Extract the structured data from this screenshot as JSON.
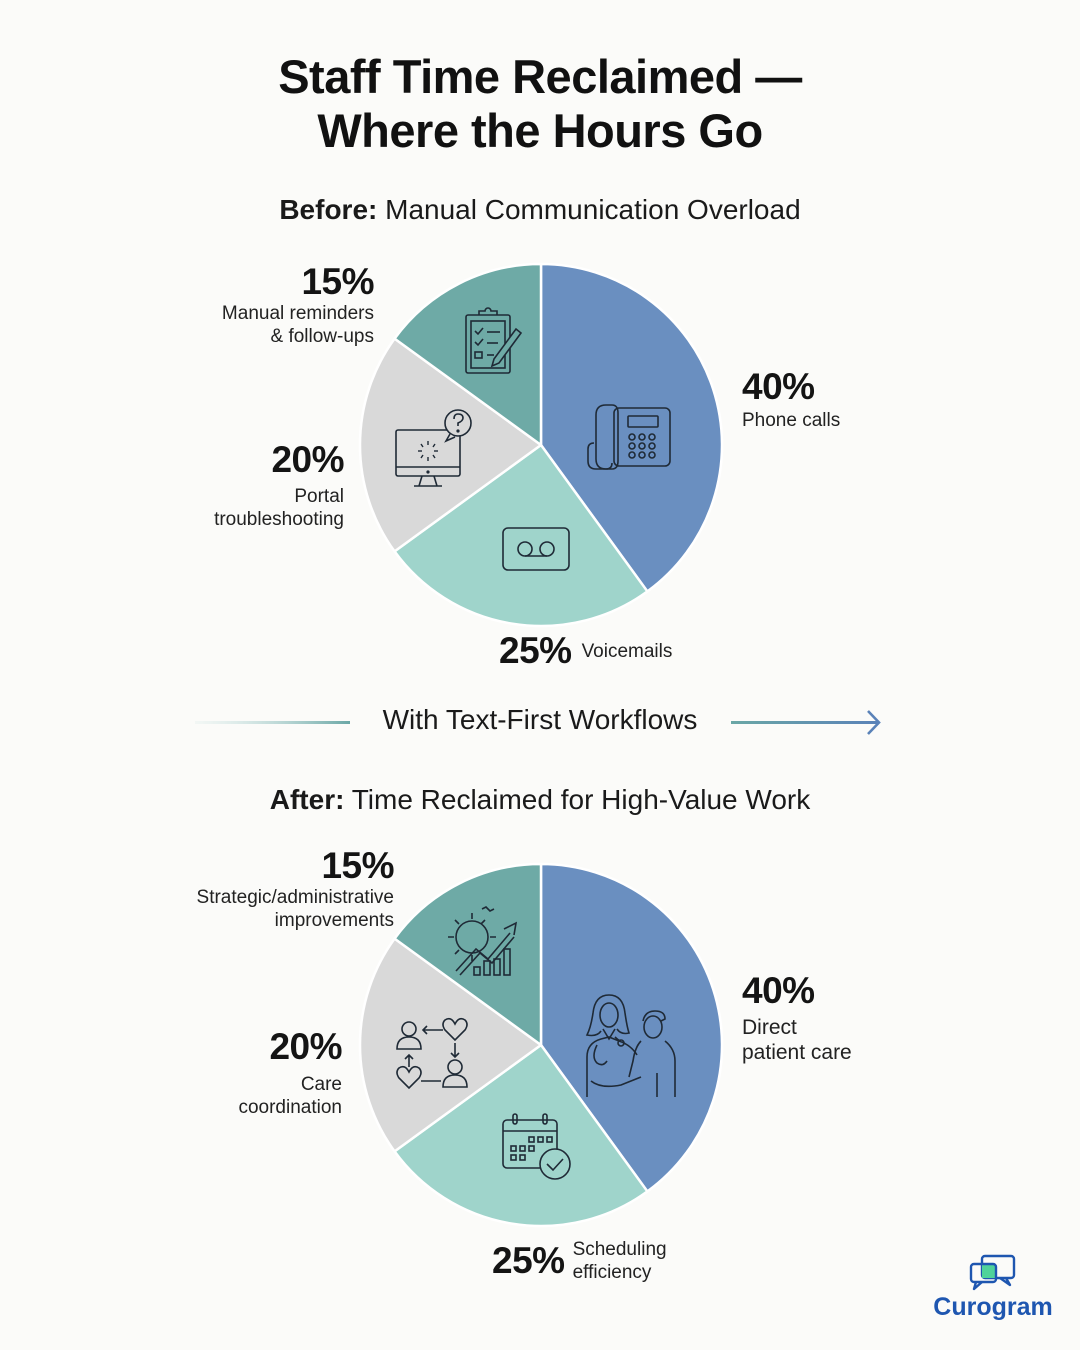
{
  "header": {
    "title_line1": "Staff Time Reclaimed —",
    "title_line2": "Where the Hours Go"
  },
  "before": {
    "heading_bold": "Before:",
    "heading_rest": " Manual Communication Overload"
  },
  "divider": {
    "label": "With Text-First Workflows",
    "icon": "arrow-right-icon"
  },
  "after": {
    "heading_bold": "After:",
    "heading_rest": " Time Reclaimed for High-Value Work"
  },
  "colors": {
    "blue": "#6a8fc0",
    "light_teal": "#9fd4cb",
    "grey": "#d9d9d9",
    "teal": "#6eaaa6",
    "brand": "#1e56b0",
    "brand_accent": "#4fd39a",
    "background": "#fbfbf9"
  },
  "brand": {
    "name": "Curogram",
    "icon": "chat-bubbles-logo-icon"
  },
  "chart_data": [
    {
      "type": "pie",
      "title": "Before: Manual Communication Overload",
      "categories": [
        "Phone calls",
        "Voicemails",
        "Portal troubleshooting",
        "Manual reminders & follow-ups"
      ],
      "values": [
        40,
        25,
        20,
        15
      ],
      "unit": "%",
      "colors": [
        "#6a8fc0",
        "#9fd4cb",
        "#d9d9d9",
        "#6eaaa6"
      ],
      "icons": [
        "desk-phone-icon",
        "voicemail-icon",
        "computer-help-icon",
        "clipboard-checklist-icon"
      ],
      "labels": {
        "phone": {
          "pct": "40%",
          "text": "Phone calls"
        },
        "voicemail": {
          "pct": "25%",
          "text": "Voicemails"
        },
        "portal": {
          "pct": "20%",
          "text_line1": "Portal",
          "text_line2": "troubleshooting"
        },
        "reminders": {
          "pct": "15%",
          "text_line1": "Manual reminders",
          "text_line2": "& follow-ups"
        }
      },
      "start_angle": "12 o'clock, clockwise"
    },
    {
      "type": "pie",
      "title": "After: Time Reclaimed for High-Value Work",
      "categories": [
        "Direct patient care",
        "Scheduling efficiency",
        "Care coordination",
        "Strategic/administrative improvements"
      ],
      "values": [
        40,
        25,
        20,
        15
      ],
      "unit": "%",
      "colors": [
        "#6a8fc0",
        "#9fd4cb",
        "#d9d9d9",
        "#6eaaa6"
      ],
      "icons": [
        "doctor-patient-icon",
        "calendar-check-icon",
        "care-cycle-icon",
        "gear-growth-chart-icon"
      ],
      "labels": {
        "patient": {
          "pct": "40%",
          "text_line1": "Direct",
          "text_line2": "patient care"
        },
        "scheduling": {
          "pct": "25%",
          "text_line1": "Scheduling",
          "text_line2": "efficiency"
        },
        "coordination": {
          "pct": "20%",
          "text_line1": "Care",
          "text_line2": "coordination"
        },
        "strategic": {
          "pct": "15%",
          "text_line1": "Strategic/administrative",
          "text_line2": "improvements"
        }
      },
      "start_angle": "12 o'clock, clockwise"
    }
  ]
}
